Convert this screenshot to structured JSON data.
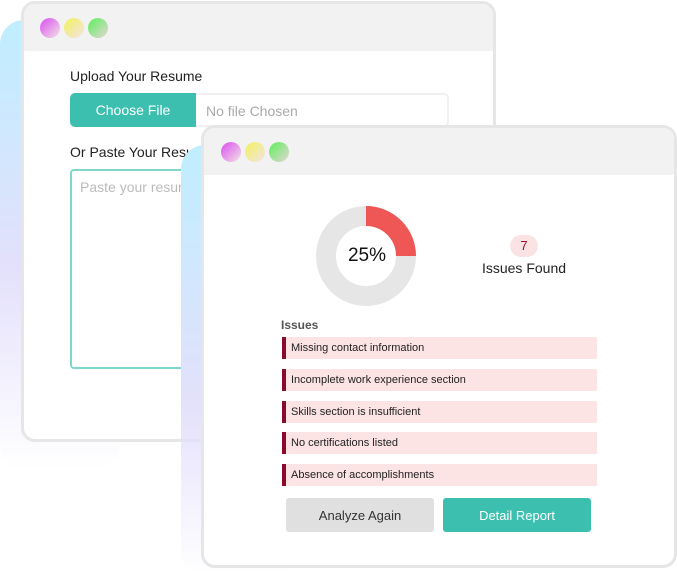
{
  "upload_window": {
    "upload_label": "Upload Your Resume",
    "choose_file": "Choose File",
    "file_status": "No file Chosen",
    "paste_label": "Or Paste Your Resume",
    "paste_placeholder": "Paste your resume"
  },
  "results_window": {
    "score_percent": 25,
    "score_label": "25%",
    "score_color": "#ef5757",
    "issues_count": "7",
    "issues_found_label": "Issues Found",
    "issues_heading": "Issues",
    "issues": [
      "Missing contact information",
      "Incomplete work experience section",
      "Skills section is insufficient",
      "No certifications listed",
      "Absence of accomplishments"
    ],
    "analyze_again": "Analyze Again",
    "detail_report": "Detail Report"
  },
  "colors": {
    "accent": "#3dbfb0",
    "issue_bar": "#8b0a2a",
    "issue_bg": "#fce4e4"
  }
}
